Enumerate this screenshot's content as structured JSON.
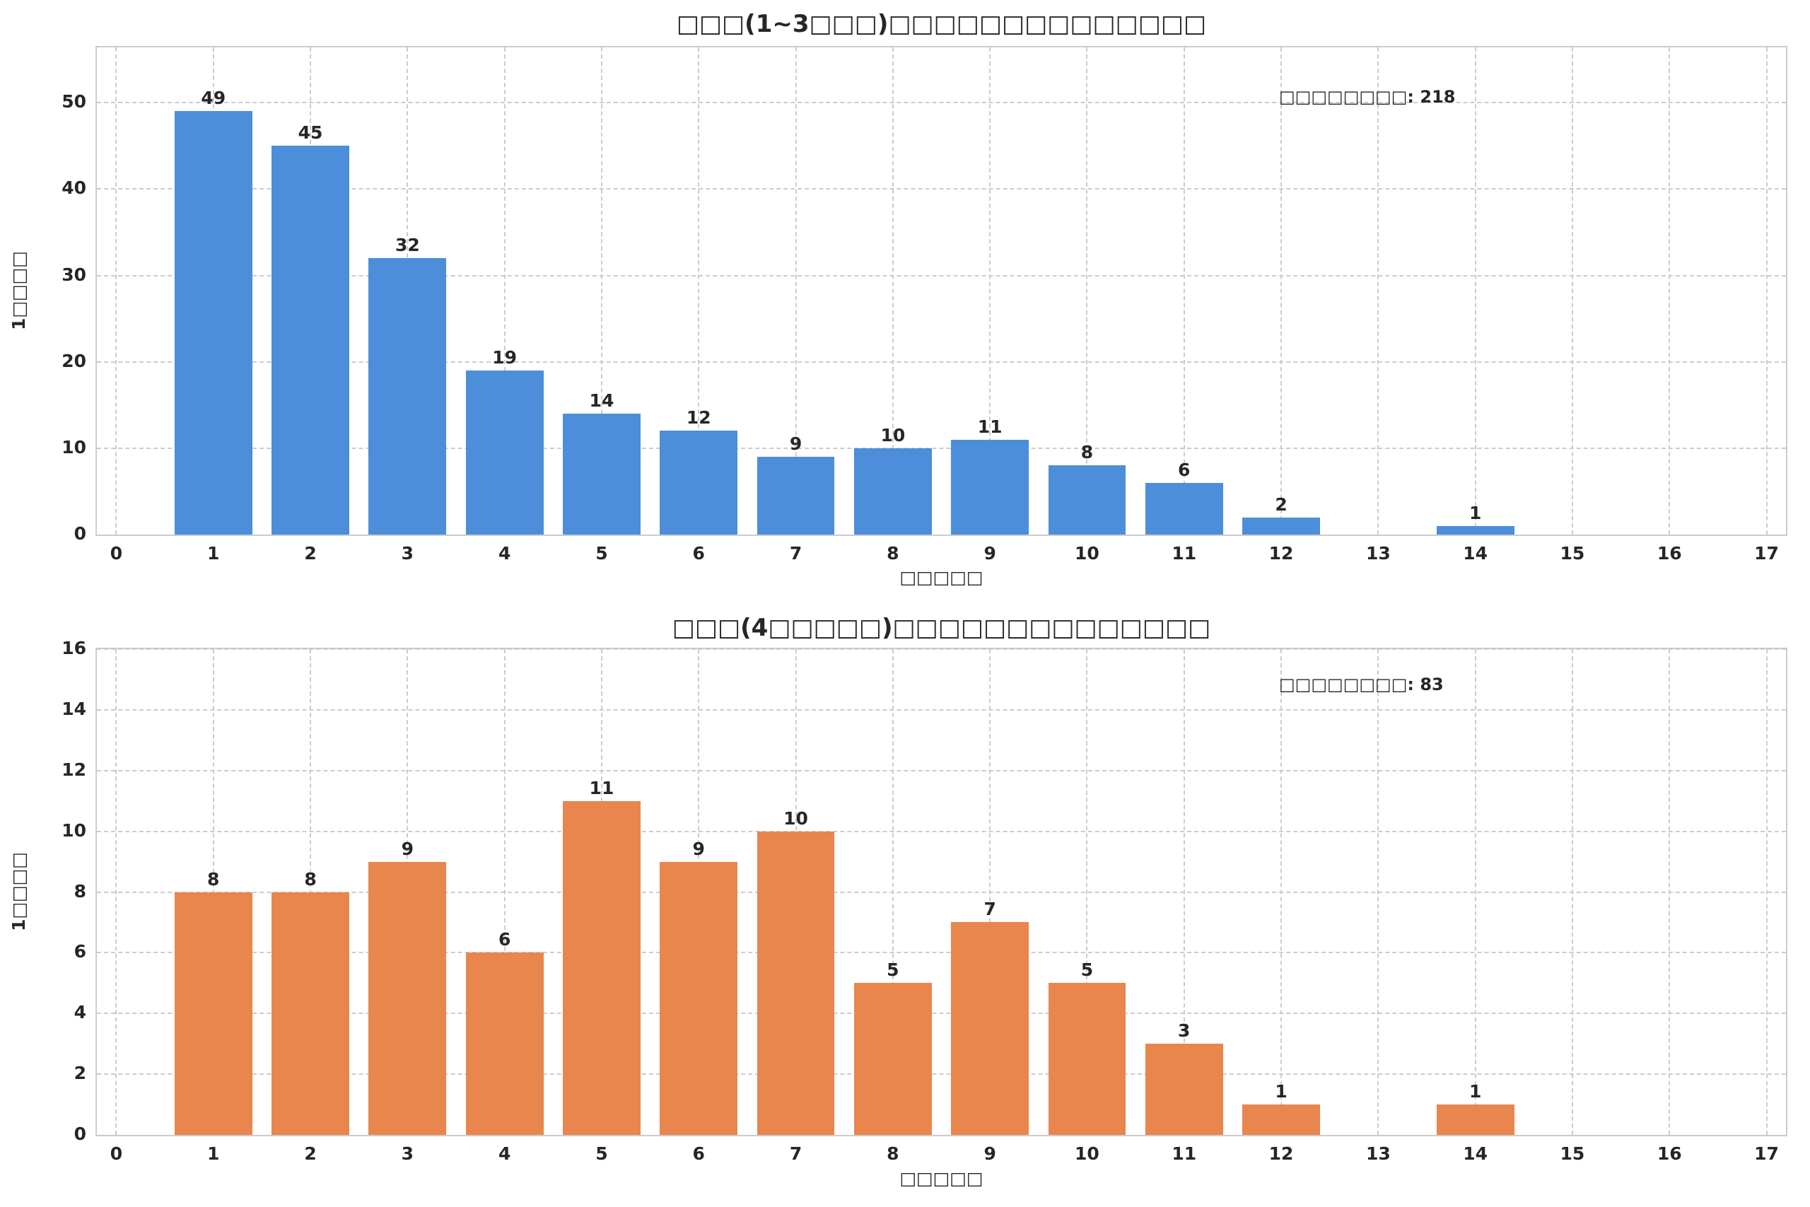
{
  "figure": {
    "background": "#ffffff",
    "text_color": "#262626",
    "grid_color": "#cccccc"
  },
  "chart_data": [
    {
      "type": "bar",
      "title": "□□□(1~3□□□)□□□□□□□□□□□□□□",
      "xlabel": "□□□□□",
      "ylabel": "1□□□□",
      "annotation": "□□□□□□□□: 218",
      "bar_color": "#4C8ED9",
      "x": [
        1,
        2,
        3,
        4,
        5,
        6,
        7,
        8,
        9,
        10,
        11,
        12,
        14
      ],
      "values": [
        49,
        45,
        32,
        19,
        14,
        12,
        9,
        10,
        11,
        8,
        6,
        2,
        1
      ],
      "bar_width": 0.8,
      "xlim": [
        -0.2,
        17.2
      ],
      "ylim": [
        0,
        56.4
      ],
      "xticks": [
        0,
        1,
        2,
        3,
        4,
        5,
        6,
        7,
        8,
        9,
        10,
        11,
        12,
        13,
        14,
        15,
        16,
        17
      ],
      "yticks": [
        0,
        10,
        20,
        30,
        40,
        50
      ],
      "grid": true,
      "legend": "none"
    },
    {
      "type": "bar",
      "title": "□□□(4□□□□□)□□□□□□□□□□□□□□",
      "xlabel": "□□□□□",
      "ylabel": "1□□□□",
      "annotation": "□□□□□□□□: 83",
      "bar_color": "#E8864D",
      "x": [
        1,
        2,
        3,
        4,
        5,
        6,
        7,
        8,
        9,
        10,
        11,
        12,
        14
      ],
      "values": [
        8,
        8,
        9,
        6,
        11,
        9,
        10,
        5,
        7,
        5,
        3,
        1,
        1
      ],
      "bar_width": 0.8,
      "xlim": [
        -0.2,
        17.2
      ],
      "ylim": [
        0,
        16
      ],
      "xticks": [
        0,
        1,
        2,
        3,
        4,
        5,
        6,
        7,
        8,
        9,
        10,
        11,
        12,
        13,
        14,
        15,
        16,
        17
      ],
      "yticks": [
        0,
        2,
        4,
        6,
        8,
        10,
        12,
        14,
        16
      ],
      "grid": true,
      "legend": "none"
    }
  ]
}
